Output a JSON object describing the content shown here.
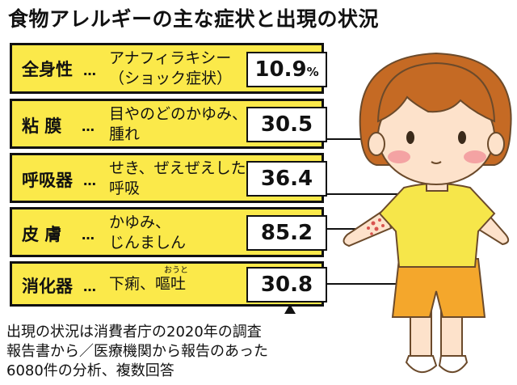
{
  "title": "食物アレルギーの主な症状と出現の状況",
  "rows": [
    {
      "category": "全身性",
      "dots": "…",
      "lines": [
        "アナフィラキシー",
        "（ショック症状）"
      ],
      "value": "10.9",
      "unit": "%"
    },
    {
      "category": "粘 膜",
      "dots": "…",
      "lines": [
        "目やのどのかゆみ、",
        "腫れ"
      ],
      "value": "30.5",
      "unit": ""
    },
    {
      "category": "呼吸器",
      "dots": "…",
      "lines": [
        "せき、ぜえぜえした",
        "呼吸"
      ],
      "value": "36.4",
      "unit": ""
    },
    {
      "category": "皮 膚",
      "dots": "…",
      "lines": [
        "かゆみ、",
        "じんましん"
      ],
      "value": "85.2",
      "unit": ""
    },
    {
      "category": "消化器",
      "dots": "…",
      "lines": [
        "下痢、嘔吐"
      ],
      "value": "30.8",
      "unit": "",
      "ruby": "おうと"
    }
  ],
  "note_lines": [
    "出現の状況は消費者庁の2020年の調査",
    "報告書から／医療機関から報告のあった",
    "6080件の分析、複数回答"
  ],
  "colors": {
    "panel": "#fbe94a",
    "border": "#111111",
    "hair": "#c56a24",
    "shirt": "#f6e64a",
    "shorts": "#f4a72c",
    "skin": "#fde2cb",
    "rash": "#d9534f"
  }
}
